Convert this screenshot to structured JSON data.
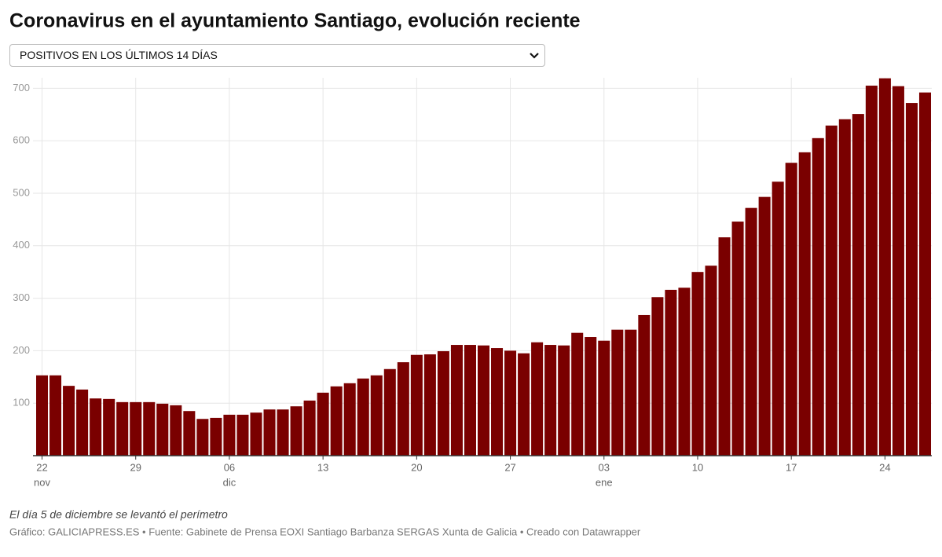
{
  "chart_data": {
    "type": "bar",
    "title": "Coronavirus en el ayuntamiento Santiago, evolución reciente",
    "selector": "POSITIVOS EN LOS ÚLTIMOS 14 DÍAS",
    "note": "El día 5 de diciembre se levantó el perímetro",
    "source": "Gráfico: GALICIAPRESS.ES • Fuente: Gabinete de Prensa EOXI Santiago Barbanza SERGAS Xunta de Galicia • Creado con Datawrapper",
    "categories": [
      "22",
      null,
      null,
      null,
      null,
      null,
      null,
      "29",
      null,
      null,
      null,
      null,
      null,
      null,
      "06",
      null,
      null,
      null,
      null,
      null,
      null,
      "13",
      null,
      null,
      null,
      null,
      null,
      null,
      "20",
      null,
      null,
      null,
      null,
      null,
      null,
      "27",
      null,
      null,
      null,
      null,
      null,
      null,
      "03",
      null,
      null,
      null,
      null,
      null,
      null,
      "10",
      null,
      null,
      null,
      null,
      null,
      null,
      "17",
      null,
      null,
      null,
      null,
      null,
      null,
      "24",
      null,
      null,
      null
    ],
    "category_months": [
      "nov",
      null,
      null,
      null,
      null,
      null,
      null,
      null,
      null,
      null,
      null,
      null,
      null,
      null,
      "dic",
      null,
      null,
      null,
      null,
      null,
      null,
      null,
      null,
      null,
      null,
      null,
      null,
      null,
      null,
      null,
      null,
      null,
      null,
      null,
      null,
      null,
      null,
      null,
      null,
      null,
      null,
      null,
      "ene",
      null,
      null,
      null,
      null,
      null,
      null,
      null,
      null,
      null,
      null,
      null,
      null,
      null,
      null,
      null,
      null,
      null,
      null,
      null,
      null,
      null,
      null,
      null,
      null
    ],
    "values": [
      153,
      153,
      133,
      126,
      109,
      108,
      102,
      102,
      102,
      99,
      96,
      85,
      70,
      72,
      78,
      78,
      82,
      88,
      88,
      94,
      105,
      120,
      132,
      138,
      147,
      153,
      165,
      178,
      192,
      193,
      199,
      211,
      211,
      210,
      205,
      200,
      195,
      216,
      211,
      210,
      234,
      226,
      219,
      240,
      240,
      268,
      302,
      316,
      320,
      350,
      362,
      416,
      446,
      472,
      493,
      522,
      558,
      578,
      605,
      629,
      641,
      651,
      705,
      719,
      704,
      672,
      692
    ],
    "color": "#7a0000",
    "ylim": [
      0,
      720
    ],
    "yticks": [
      100,
      200,
      300,
      400,
      500,
      600,
      700
    ],
    "grid": true
  }
}
